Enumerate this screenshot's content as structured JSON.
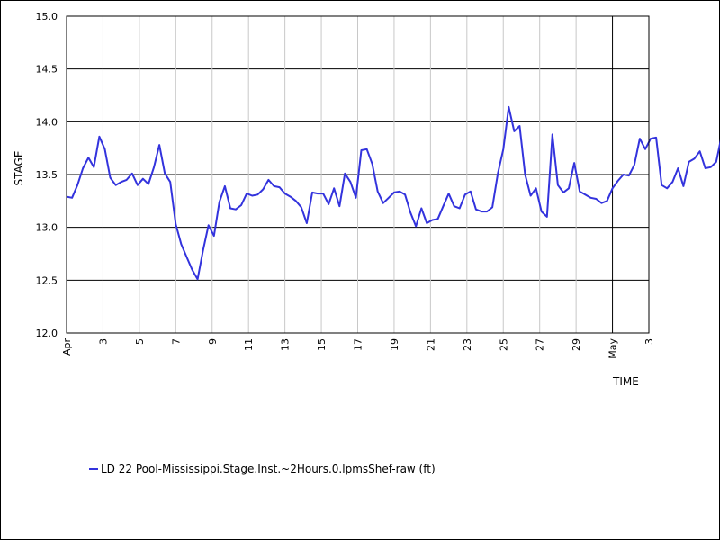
{
  "chart_data": {
    "type": "line",
    "xlabel": "TIME",
    "ylabel": "STAGE",
    "ylim": [
      12.0,
      15.0
    ],
    "yticks": [
      "12.0",
      "12.5",
      "13.0",
      "13.5",
      "14.0",
      "14.5",
      "15.0"
    ],
    "xlim": [
      "Apr 1",
      "May 3"
    ],
    "xticks": [
      {
        "label": "Apr",
        "day": 1,
        "major": true
      },
      {
        "label": "3",
        "day": 3,
        "major": false
      },
      {
        "label": "5",
        "day": 5,
        "major": false
      },
      {
        "label": "7",
        "day": 7,
        "major": false
      },
      {
        "label": "9",
        "day": 9,
        "major": false
      },
      {
        "label": "11",
        "day": 11,
        "major": false
      },
      {
        "label": "13",
        "day": 13,
        "major": false
      },
      {
        "label": "15",
        "day": 15,
        "major": false
      },
      {
        "label": "17",
        "day": 17,
        "major": false
      },
      {
        "label": "19",
        "day": 19,
        "major": false
      },
      {
        "label": "21",
        "day": 21,
        "major": false
      },
      {
        "label": "23",
        "day": 23,
        "major": false
      },
      {
        "label": "25",
        "day": 25,
        "major": false
      },
      {
        "label": "27",
        "day": 27,
        "major": false
      },
      {
        "label": "29",
        "day": 29,
        "major": false
      },
      {
        "label": "May",
        "day": 31,
        "major": true
      },
      {
        "label": "3",
        "day": 33,
        "major": false
      }
    ],
    "grid": true,
    "legend": "bottom-left",
    "series": [
      {
        "name": "LD 22 Pool-Mississippi.Stage.Inst.~2Hours.0.lpmsShef-raw (ft)",
        "color": "#3333dd",
        "points": [
          [
            1.0,
            13.29
          ],
          [
            1.3,
            13.28
          ],
          [
            1.6,
            13.4
          ],
          [
            1.9,
            13.56
          ],
          [
            2.2,
            13.66
          ],
          [
            2.5,
            13.57
          ],
          [
            2.8,
            13.86
          ],
          [
            3.1,
            13.74
          ],
          [
            3.4,
            13.47
          ],
          [
            3.7,
            13.4
          ],
          [
            4.0,
            13.43
          ],
          [
            4.3,
            13.45
          ],
          [
            4.6,
            13.51
          ],
          [
            4.9,
            13.4
          ],
          [
            5.2,
            13.46
          ],
          [
            5.5,
            13.41
          ],
          [
            5.8,
            13.57
          ],
          [
            6.1,
            13.78
          ],
          [
            6.4,
            13.51
          ],
          [
            6.7,
            13.43
          ],
          [
            7.0,
            13.03
          ],
          [
            7.3,
            12.84
          ],
          [
            7.6,
            12.72
          ],
          [
            7.9,
            12.6
          ],
          [
            8.2,
            12.51
          ],
          [
            8.5,
            12.78
          ],
          [
            8.8,
            13.02
          ],
          [
            9.1,
            12.92
          ],
          [
            9.4,
            13.24
          ],
          [
            9.7,
            13.39
          ],
          [
            10.0,
            13.18
          ],
          [
            10.3,
            13.17
          ],
          [
            10.6,
            13.21
          ],
          [
            10.9,
            13.32
          ],
          [
            11.2,
            13.3
          ],
          [
            11.5,
            13.31
          ],
          [
            11.8,
            13.36
          ],
          [
            12.1,
            13.45
          ],
          [
            12.4,
            13.39
          ],
          [
            12.7,
            13.38
          ],
          [
            13.0,
            13.32
          ],
          [
            13.3,
            13.29
          ],
          [
            13.6,
            13.25
          ],
          [
            13.9,
            13.19
          ],
          [
            14.2,
            13.04
          ],
          [
            14.5,
            13.33
          ],
          [
            14.8,
            13.32
          ],
          [
            15.1,
            13.32
          ],
          [
            15.4,
            13.22
          ],
          [
            15.7,
            13.37
          ],
          [
            16.0,
            13.2
          ],
          [
            16.3,
            13.51
          ],
          [
            16.6,
            13.43
          ],
          [
            16.9,
            13.28
          ],
          [
            17.2,
            13.73
          ],
          [
            17.5,
            13.74
          ],
          [
            17.8,
            13.6
          ],
          [
            18.1,
            13.34
          ],
          [
            18.4,
            13.23
          ],
          [
            18.7,
            13.28
          ],
          [
            19.0,
            13.33
          ],
          [
            19.3,
            13.34
          ],
          [
            19.6,
            13.31
          ],
          [
            19.9,
            13.14
          ],
          [
            20.2,
            13.01
          ],
          [
            20.5,
            13.18
          ],
          [
            20.8,
            13.04
          ],
          [
            21.1,
            13.07
          ],
          [
            21.4,
            13.08
          ],
          [
            21.7,
            13.2
          ],
          [
            22.0,
            13.32
          ],
          [
            22.3,
            13.2
          ],
          [
            22.6,
            13.18
          ],
          [
            22.9,
            13.31
          ],
          [
            23.2,
            13.34
          ],
          [
            23.5,
            13.17
          ],
          [
            23.8,
            13.15
          ],
          [
            24.1,
            13.15
          ],
          [
            24.4,
            13.19
          ],
          [
            24.7,
            13.51
          ],
          [
            25.0,
            13.74
          ],
          [
            25.3,
            14.14
          ],
          [
            25.6,
            13.91
          ],
          [
            25.9,
            13.96
          ],
          [
            26.2,
            13.5
          ],
          [
            26.5,
            13.3
          ],
          [
            26.8,
            13.37
          ],
          [
            27.1,
            13.15
          ],
          [
            27.4,
            13.1
          ],
          [
            27.7,
            13.88
          ],
          [
            28.0,
            13.4
          ],
          [
            28.3,
            13.33
          ],
          [
            28.6,
            13.37
          ],
          [
            28.9,
            13.61
          ],
          [
            29.2,
            13.34
          ],
          [
            29.5,
            13.31
          ],
          [
            29.8,
            13.28
          ],
          [
            30.1,
            13.27
          ],
          [
            30.4,
            13.23
          ],
          [
            30.7,
            13.25
          ],
          [
            31.0,
            13.37
          ],
          [
            31.3,
            13.44
          ],
          [
            31.6,
            13.5
          ],
          [
            31.9,
            13.49
          ],
          [
            32.2,
            13.59
          ],
          [
            32.5,
            13.84
          ],
          [
            32.8,
            13.74
          ],
          [
            33.1,
            13.84
          ],
          [
            33.4,
            13.85
          ],
          [
            33.7,
            13.4
          ],
          [
            34.0,
            13.37
          ],
          [
            34.3,
            13.43
          ],
          [
            34.6,
            13.56
          ],
          [
            34.9,
            13.39
          ],
          [
            35.2,
            13.62
          ],
          [
            35.5,
            13.65
          ],
          [
            35.8,
            13.72
          ],
          [
            36.1,
            13.56
          ],
          [
            36.4,
            13.57
          ],
          [
            36.7,
            13.62
          ],
          [
            37.0,
            13.87
          ]
        ]
      }
    ]
  }
}
